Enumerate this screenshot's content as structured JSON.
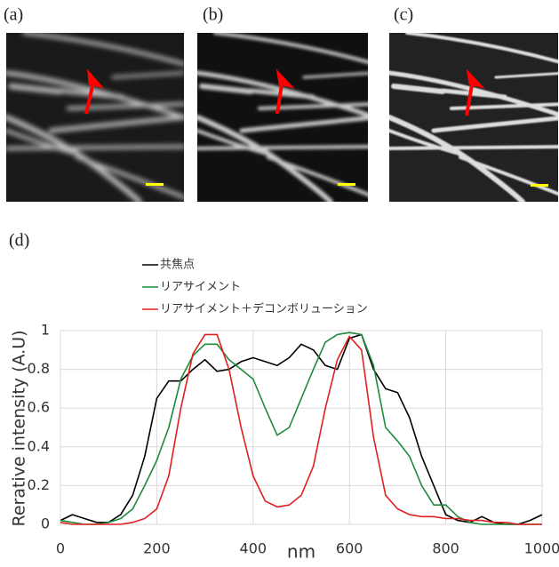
{
  "panels": [
    "(a)",
    "(b)",
    "(c)",
    "(d)"
  ],
  "chart_data": {
    "type": "line",
    "x": [
      0,
      25,
      50,
      75,
      100,
      125,
      150,
      175,
      200,
      225,
      250,
      275,
      300,
      325,
      350,
      375,
      400,
      425,
      450,
      475,
      500,
      525,
      550,
      575,
      600,
      625,
      650,
      675,
      700,
      725,
      750,
      775,
      800,
      825,
      850,
      875,
      900,
      925,
      950,
      975,
      1000
    ],
    "series": [
      {
        "name": "共焦点",
        "color": "#000000",
        "values": [
          0.02,
          0.05,
          0.03,
          0.01,
          0.01,
          0.05,
          0.15,
          0.35,
          0.65,
          0.74,
          0.74,
          0.8,
          0.85,
          0.79,
          0.8,
          0.84,
          0.86,
          0.84,
          0.82,
          0.86,
          0.93,
          0.9,
          0.82,
          0.8,
          0.96,
          0.98,
          0.8,
          0.7,
          0.68,
          0.55,
          0.35,
          0.2,
          0.05,
          0.02,
          0.01,
          0.04,
          0.01,
          0,
          0,
          0.02,
          0.05
        ]
      },
      {
        "name": "リアサイメント",
        "color": "#1e8a3a",
        "values": [
          0.02,
          0.01,
          0,
          0,
          0.01,
          0.03,
          0.08,
          0.2,
          0.33,
          0.5,
          0.75,
          0.87,
          0.93,
          0.93,
          0.85,
          0.8,
          0.75,
          0.6,
          0.46,
          0.5,
          0.65,
          0.8,
          0.94,
          0.98,
          0.99,
          0.98,
          0.82,
          0.5,
          0.43,
          0.35,
          0.2,
          0.1,
          0.1,
          0.04,
          0.01,
          0,
          0,
          0,
          0,
          0,
          0
        ]
      },
      {
        "name": "リアサイメント＋デコンボリューション",
        "color": "#e02020",
        "values": [
          0.01,
          0,
          0,
          0,
          0,
          0,
          0.01,
          0.03,
          0.08,
          0.25,
          0.6,
          0.88,
          0.98,
          0.98,
          0.8,
          0.5,
          0.25,
          0.12,
          0.09,
          0.1,
          0.15,
          0.3,
          0.6,
          0.85,
          0.97,
          0.9,
          0.45,
          0.15,
          0.08,
          0.05,
          0.04,
          0.04,
          0.03,
          0.03,
          0.02,
          0.02,
          0.01,
          0.01,
          0,
          0,
          0
        ]
      }
    ],
    "xlabel": "nm",
    "ylabel": "Rerative intensity (A.U)",
    "xlim": [
      0,
      1000
    ],
    "xticks": [
      0,
      200,
      400,
      600,
      800,
      1000
    ],
    "ylim": [
      0,
      1
    ],
    "yticks": [
      0,
      0.2,
      0.4,
      0.6,
      0.8,
      1
    ],
    "grid": true,
    "legend": "top-left"
  }
}
